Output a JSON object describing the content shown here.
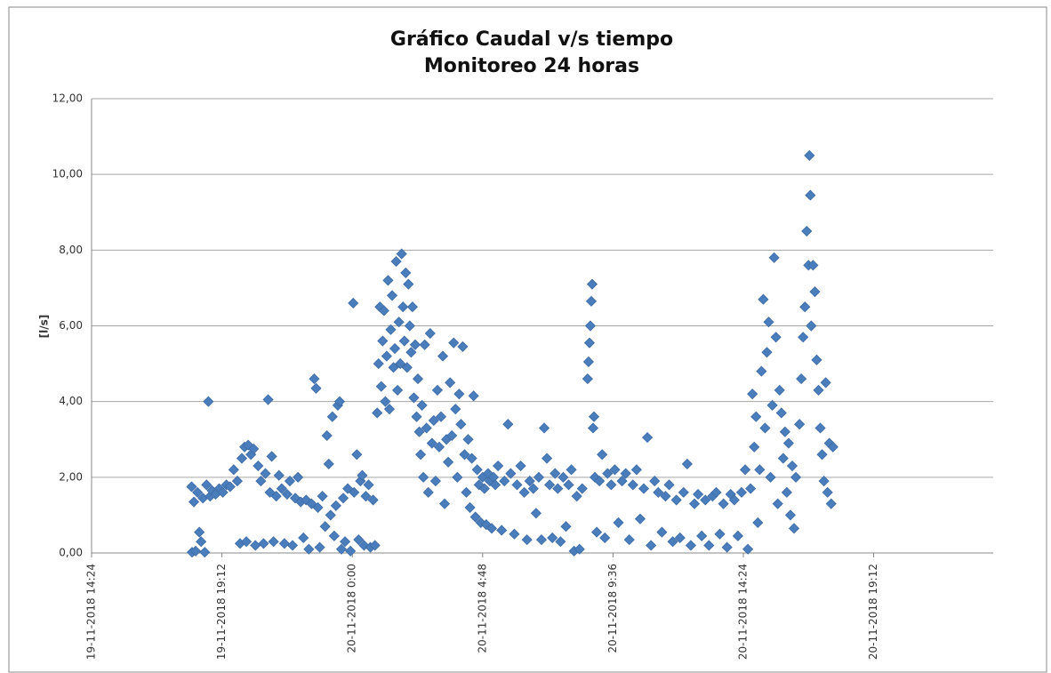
{
  "chart_data": {
    "type": "scatter",
    "title": "Gráfico Caudal v/s tiempo",
    "subtitle": "Monitoreo 24 horas",
    "ylabel": "[l/s]",
    "color": "#4a7dbb",
    "grid": true,
    "ylim": [
      0,
      12
    ],
    "yticks": [
      {
        "value": 0,
        "label": "0,00"
      },
      {
        "value": 2,
        "label": "2,00"
      },
      {
        "value": 4,
        "label": "4,00"
      },
      {
        "value": 6,
        "label": "6,00"
      },
      {
        "value": 8,
        "label": "8,00"
      },
      {
        "value": 10,
        "label": "10,00"
      },
      {
        "value": 12,
        "label": "12,00"
      }
    ],
    "xlim": [
      "19-11-2018 14:24",
      "20-11-2018 23:36"
    ],
    "xticks": [
      "19-11-2018 14:24",
      "19-11-2018 19:12",
      "20-11-2018 0:00",
      "20-11-2018 4:48",
      "20-11-2018 9:36",
      "20-11-2018 14:24",
      "20-11-2018 19:12"
    ],
    "x": [
      "19-11-2018 18:05",
      "19-11-2018 18:06",
      "19-11-2018 18:10",
      "19-11-2018 18:14",
      "19-11-2018 18:18",
      "19-11-2018 18:22",
      "19-11-2018 18:26",
      "19-11-2018 18:30",
      "19-11-2018 18:34",
      "19-11-2018 18:38",
      "19-11-2018 18:42",
      "19-11-2018 18:46",
      "19-11-2018 18:50",
      "19-11-2018 18:58",
      "19-11-2018 19:06",
      "19-11-2018 19:14",
      "19-11-2018 19:22",
      "19-11-2018 19:30",
      "19-11-2018 19:38",
      "19-11-2018 19:46",
      "19-11-2018 19:52",
      "19-11-2018 19:56",
      "19-11-2018 20:02",
      "19-11-2018 20:06",
      "19-11-2018 20:10",
      "19-11-2018 20:16",
      "19-11-2018 20:22",
      "19-11-2018 20:26",
      "19-11-2018 20:32",
      "19-11-2018 20:38",
      "19-11-2018 20:44",
      "19-11-2018 20:48",
      "19-11-2018 20:54",
      "19-11-2018 20:58",
      "19-11-2018 21:02",
      "19-11-2018 21:06",
      "19-11-2018 21:12",
      "19-11-2018 21:18",
      "19-11-2018 21:24",
      "19-11-2018 21:30",
      "19-11-2018 21:36",
      "19-11-2018 21:42",
      "19-11-2018 21:48",
      "19-11-2018 21:54",
      "19-11-2018 22:00",
      "19-11-2018 22:06",
      "19-11-2018 22:12",
      "19-11-2018 22:18",
      "19-11-2018 22:24",
      "19-11-2018 22:30",
      "19-11-2018 22:36",
      "19-11-2018 22:40",
      "19-11-2018 22:44",
      "19-11-2018 22:48",
      "19-11-2018 22:54",
      "19-11-2018 23:00",
      "19-11-2018 23:04",
      "19-11-2018 23:08",
      "19-11-2018 23:12",
      "19-11-2018 23:16",
      "19-11-2018 23:20",
      "19-11-2018 23:24",
      "19-11-2018 23:28",
      "19-11-2018 23:32",
      "19-11-2018 23:36",
      "19-11-2018 23:40",
      "19-11-2018 23:44",
      "19-11-2018 23:50",
      "19-11-2018 23:56",
      "20-11-2018 0:02",
      "20-11-2018 0:04",
      "20-11-2018 0:10",
      "20-11-2018 0:14",
      "20-11-2018 0:18",
      "20-11-2018 0:22",
      "20-11-2018 0:26",
      "20-11-2018 0:30",
      "20-11-2018 0:36",
      "20-11-2018 0:40",
      "20-11-2018 0:46",
      "20-11-2018 0:50",
      "20-11-2018 0:55",
      "20-11-2018 0:58",
      "20-11-2018 1:01",
      "20-11-2018 1:04",
      "20-11-2018 1:07",
      "20-11-2018 1:10",
      "20-11-2018 1:13",
      "20-11-2018 1:16",
      "20-11-2018 1:19",
      "20-11-2018 1:22",
      "20-11-2018 1:25",
      "20-11-2018 1:28",
      "20-11-2018 1:31",
      "20-11-2018 1:34",
      "20-11-2018 1:37",
      "20-11-2018 1:40",
      "20-11-2018 1:43",
      "20-11-2018 1:46",
      "20-11-2018 1:49",
      "20-11-2018 1:52",
      "20-11-2018 1:55",
      "20-11-2018 1:58",
      "20-11-2018 2:01",
      "20-11-2018 2:04",
      "20-11-2018 2:07",
      "20-11-2018 2:10",
      "20-11-2018 2:13",
      "20-11-2018 2:16",
      "20-11-2018 2:19",
      "20-11-2018 2:22",
      "20-11-2018 2:25",
      "20-11-2018 2:28",
      "20-11-2018 2:31",
      "20-11-2018 2:34",
      "20-11-2018 2:37",
      "20-11-2018 2:40",
      "20-11-2018 2:44",
      "20-11-2018 2:48",
      "20-11-2018 2:52",
      "20-11-2018 2:56",
      "20-11-2018 3:00",
      "20-11-2018 3:04",
      "20-11-2018 3:08",
      "20-11-2018 3:12",
      "20-11-2018 3:16",
      "20-11-2018 3:20",
      "20-11-2018 3:24",
      "20-11-2018 3:28",
      "20-11-2018 3:32",
      "20-11-2018 3:36",
      "20-11-2018 3:40",
      "20-11-2018 3:44",
      "20-11-2018 3:48",
      "20-11-2018 3:52",
      "20-11-2018 3:56",
      "20-11-2018 4:00",
      "20-11-2018 4:04",
      "20-11-2018 4:08",
      "20-11-2018 4:12",
      "20-11-2018 4:16",
      "20-11-2018 4:20",
      "20-11-2018 4:24",
      "20-11-2018 4:28",
      "20-11-2018 4:32",
      "20-11-2018 4:36",
      "20-11-2018 4:40",
      "20-11-2018 4:44",
      "20-11-2018 4:48",
      "20-11-2018 4:52",
      "20-11-2018 4:56",
      "20-11-2018 5:00",
      "20-11-2018 5:04",
      "20-11-2018 5:08",
      "20-11-2018 5:12",
      "20-11-2018 5:16",
      "20-11-2018 5:22",
      "20-11-2018 5:30",
      "20-11-2018 5:36",
      "20-11-2018 5:44",
      "20-11-2018 5:50",
      "20-11-2018 5:58",
      "20-11-2018 6:04",
      "20-11-2018 6:12",
      "20-11-2018 6:20",
      "20-11-2018 6:26",
      "20-11-2018 6:32",
      "20-11-2018 6:40",
      "20-11-2018 6:46",
      "20-11-2018 6:52",
      "20-11-2018 6:58",
      "20-11-2018 7:04",
      "20-11-2018 7:10",
      "20-11-2018 7:16",
      "20-11-2018 7:22",
      "20-11-2018 7:28",
      "20-11-2018 7:34",
      "20-11-2018 7:40",
      "20-11-2018 7:46",
      "20-11-2018 7:52",
      "20-11-2018 7:58",
      "20-11-2018 8:04",
      "20-11-2018 8:10",
      "20-11-2018 8:16",
      "20-11-2018 8:22",
      "20-11-2018 8:28",
      "20-11-2018 8:40",
      "20-11-2018 8:42",
      "20-11-2018 8:44",
      "20-11-2018 8:46",
      "20-11-2018 8:48",
      "20-11-2018 8:50",
      "20-11-2018 8:52",
      "20-11-2018 8:54",
      "20-11-2018 8:56",
      "20-11-2018 9:00",
      "20-11-2018 9:06",
      "20-11-2018 9:12",
      "20-11-2018 9:18",
      "20-11-2018 9:24",
      "20-11-2018 9:32",
      "20-11-2018 9:40",
      "20-11-2018 9:48",
      "20-11-2018 9:56",
      "20-11-2018 10:04",
      "20-11-2018 10:12",
      "20-11-2018 10:20",
      "20-11-2018 10:28",
      "20-11-2018 10:36",
      "20-11-2018 10:44",
      "20-11-2018 10:52",
      "20-11-2018 11:00",
      "20-11-2018 11:08",
      "20-11-2018 11:16",
      "20-11-2018 11:24",
      "20-11-2018 11:32",
      "20-11-2018 11:40",
      "20-11-2018 11:48",
      "20-11-2018 11:56",
      "20-11-2018 12:04",
      "20-11-2018 12:12",
      "20-11-2018 12:20",
      "20-11-2018 12:28",
      "20-11-2018 12:36",
      "20-11-2018 12:44",
      "20-11-2018 12:52",
      "20-11-2018 13:00",
      "20-11-2018 13:08",
      "20-11-2018 13:16",
      "20-11-2018 13:24",
      "20-11-2018 13:32",
      "20-11-2018 13:40",
      "20-11-2018 13:48",
      "20-11-2018 13:56",
      "20-11-2018 14:04",
      "20-11-2018 14:12",
      "20-11-2018 14:20",
      "20-11-2018 14:28",
      "20-11-2018 14:34",
      "20-11-2018 14:40",
      "20-11-2018 14:44",
      "20-11-2018 14:48",
      "20-11-2018 14:52",
      "20-11-2018 14:56",
      "20-11-2018 15:00",
      "20-11-2018 15:04",
      "20-11-2018 15:08",
      "20-11-2018 15:12",
      "20-11-2018 15:16",
      "20-11-2018 15:20",
      "20-11-2018 15:24",
      "20-11-2018 15:28",
      "20-11-2018 15:32",
      "20-11-2018 15:36",
      "20-11-2018 15:40",
      "20-11-2018 15:44",
      "20-11-2018 15:48",
      "20-11-2018 15:52",
      "20-11-2018 15:56",
      "20-11-2018 16:00",
      "20-11-2018 16:04",
      "20-11-2018 16:08",
      "20-11-2018 16:12",
      "20-11-2018 16:16",
      "20-11-2018 16:20",
      "20-11-2018 16:28",
      "20-11-2018 16:32",
      "20-11-2018 16:36",
      "20-11-2018 16:40",
      "20-11-2018 16:44",
      "20-11-2018 16:48",
      "20-11-2018 16:50",
      "20-11-2018 16:52",
      "20-11-2018 16:54",
      "20-11-2018 16:58",
      "20-11-2018 17:02",
      "20-11-2018 17:06",
      "20-11-2018 17:10",
      "20-11-2018 17:14",
      "20-11-2018 17:18",
      "20-11-2018 17:22",
      "20-11-2018 17:26",
      "20-11-2018 17:30",
      "20-11-2018 17:34",
      "20-11-2018 17:38",
      "20-11-2018 17:42"
    ],
    "values": [
      1.75,
      0.02,
      1.35,
      0.05,
      1.6,
      0.55,
      0.3,
      1.45,
      0.02,
      1.8,
      4.0,
      1.5,
      1.65,
      1.55,
      1.7,
      1.6,
      1.8,
      1.75,
      2.2,
      1.9,
      0.25,
      2.5,
      2.8,
      0.3,
      2.85,
      2.6,
      2.75,
      0.2,
      2.3,
      1.9,
      0.25,
      2.1,
      4.05,
      1.6,
      2.55,
      0.3,
      1.5,
      2.05,
      1.7,
      0.25,
      1.55,
      1.9,
      0.2,
      1.45,
      2.0,
      1.35,
      0.4,
      1.4,
      0.1,
      1.3,
      4.6,
      4.35,
      1.2,
      0.15,
      1.5,
      0.7,
      3.1,
      2.35,
      1.0,
      3.6,
      0.45,
      1.25,
      3.9,
      4.0,
      0.1,
      1.45,
      0.3,
      1.7,
      0.05,
      6.6,
      1.6,
      2.6,
      0.35,
      1.9,
      2.05,
      0.2,
      1.5,
      1.8,
      0.15,
      1.4,
      0.2,
      3.7,
      5.0,
      6.5,
      4.4,
      5.6,
      6.4,
      4.0,
      5.2,
      7.2,
      3.8,
      5.9,
      6.8,
      4.9,
      5.4,
      7.7,
      4.3,
      6.1,
      5.0,
      7.9,
      6.5,
      5.6,
      7.4,
      4.9,
      7.1,
      6.0,
      5.3,
      6.5,
      4.1,
      5.5,
      3.6,
      4.6,
      3.2,
      2.6,
      3.9,
      2.0,
      5.5,
      3.3,
      1.6,
      5.8,
      2.9,
      3.5,
      1.9,
      4.3,
      2.8,
      3.6,
      5.2,
      1.3,
      3.0,
      2.4,
      4.5,
      3.1,
      5.55,
      3.8,
      2.0,
      4.2,
      3.4,
      5.45,
      2.6,
      1.6,
      3.0,
      1.2,
      2.5,
      4.15,
      0.95,
      2.2,
      1.8,
      0.8,
      2.0,
      1.7,
      0.75,
      2.1,
      1.9,
      0.65,
      2.0,
      1.8,
      2.3,
      0.6,
      1.9,
      3.4,
      2.1,
      0.5,
      1.8,
      2.3,
      1.6,
      0.35,
      1.9,
      1.7,
      1.05,
      2.0,
      0.35,
      3.3,
      2.5,
      1.8,
      0.4,
      2.1,
      1.7,
      0.3,
      2.0,
      0.7,
      1.8,
      2.2,
      0.05,
      1.5,
      0.1,
      1.7,
      4.6,
      5.05,
      5.55,
      6.0,
      6.65,
      7.1,
      3.3,
      3.6,
      2.0,
      0.55,
      1.9,
      2.6,
      0.4,
      2.1,
      1.8,
      2.2,
      0.8,
      1.9,
      2.1,
      0.35,
      1.8,
      2.2,
      0.9,
      1.7,
      3.05,
      0.2,
      1.9,
      1.6,
      0.55,
      1.5,
      1.8,
      0.3,
      1.4,
      0.4,
      1.6,
      2.35,
      0.2,
      1.3,
      1.55,
      0.45,
      1.4,
      0.2,
      1.5,
      1.6,
      0.5,
      1.3,
      0.15,
      1.55,
      1.4,
      0.45,
      1.6,
      2.2,
      0.1,
      1.7,
      4.2,
      2.8,
      3.6,
      0.8,
      2.2,
      4.8,
      6.7,
      3.3,
      5.3,
      6.1,
      2.0,
      3.9,
      7.8,
      5.7,
      1.3,
      4.3,
      3.7,
      2.5,
      3.2,
      1.6,
      2.9,
      1.0,
      2.3,
      0.65,
      2.0,
      3.4,
      4.6,
      5.7,
      6.5,
      8.5,
      7.6,
      10.5,
      9.45,
      6.0,
      7.6,
      6.9,
      5.1,
      4.3,
      3.3,
      2.6,
      1.9,
      4.5,
      1.6,
      2.9,
      1.3,
      2.8
    ]
  }
}
